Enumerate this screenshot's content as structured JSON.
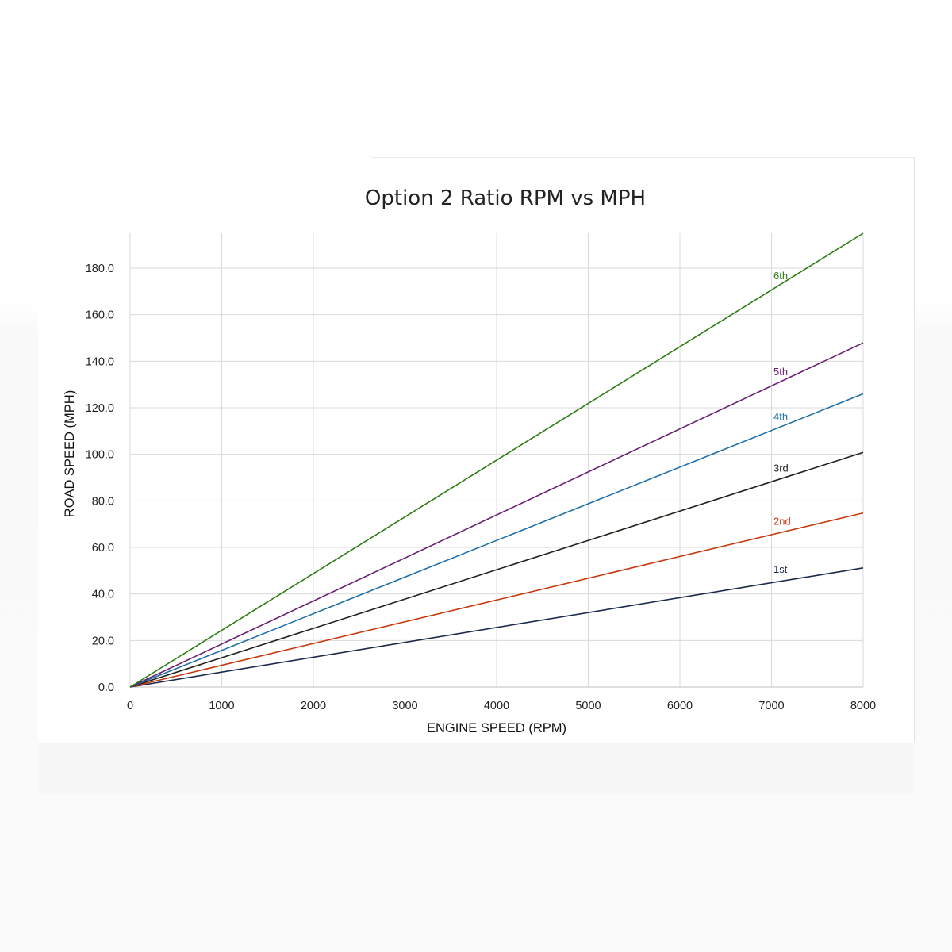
{
  "chart_data": {
    "type": "line",
    "title": "Option 2 Ratio RPM vs MPH",
    "xlabel": "ENGINE SPEED (RPM)",
    "ylabel": "ROAD SPEED (MPH)",
    "xlim": [
      0,
      8000
    ],
    "ylim": [
      0,
      195
    ],
    "x_ticks": [
      0,
      1000,
      2000,
      3000,
      4000,
      5000,
      6000,
      7000,
      8000
    ],
    "x_tick_labels": [
      "0",
      "1000",
      "2000",
      "3000",
      "4000",
      "5000",
      "6000",
      "7000",
      "8000"
    ],
    "y_ticks": [
      0,
      20,
      40,
      60,
      80,
      100,
      120,
      140,
      160,
      180
    ],
    "y_tick_labels": [
      "0.0",
      "20.0",
      "40.0",
      "60.0",
      "80.0",
      "100.0",
      "120.0",
      "140.0",
      "160.0",
      "180.0"
    ],
    "grid": true,
    "legend": "inline labels near right end of each line",
    "series": [
      {
        "name": "1st",
        "color": "#1a2a4a",
        "x": [
          0,
          8000
        ],
        "y": [
          0,
          51.2
        ]
      },
      {
        "name": "2nd",
        "color": "#c8380f",
        "x": [
          0,
          8000
        ],
        "y": [
          0,
          74.8
        ]
      },
      {
        "name": "3rd",
        "color": "#1c2318",
        "x": [
          0,
          8000
        ],
        "y": [
          0,
          100.8
        ]
      },
      {
        "name": "4th",
        "color": "#1f6fa8",
        "x": [
          0,
          8000
        ],
        "y": [
          0,
          126.0
        ]
      },
      {
        "name": "5th",
        "color": "#6a1f73",
        "x": [
          0,
          8000
        ],
        "y": [
          0,
          147.9
        ]
      },
      {
        "name": "6th",
        "color": "#2c7d13",
        "x": [
          0,
          8000
        ],
        "y": [
          0,
          195.0
        ]
      }
    ]
  }
}
